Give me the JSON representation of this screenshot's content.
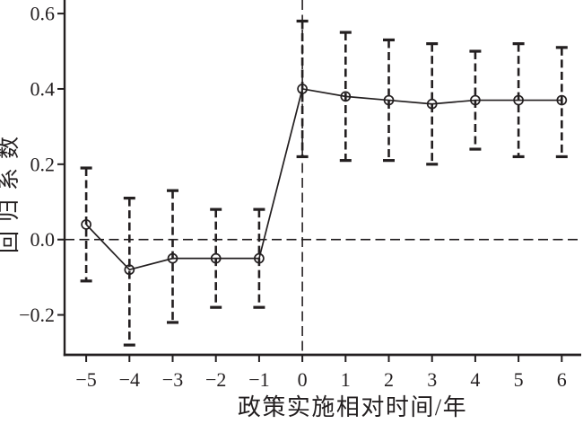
{
  "figure": {
    "background": "#ffffff",
    "ink_color": "#231f20"
  },
  "chart_data": {
    "type": "line",
    "subtype": "event-study-coefficient-plot",
    "title": "",
    "xlabel": "政策实施相对时间/年",
    "ylabel": "回归系数",
    "x": [
      -5,
      -4,
      -3,
      -2,
      -1,
      0,
      1,
      2,
      3,
      4,
      5,
      6
    ],
    "series": [
      {
        "name": "回归系数",
        "marker": "open-circle",
        "line_style": "solid",
        "values": [
          0.04,
          -0.08,
          -0.05,
          -0.05,
          -0.05,
          0.4,
          0.38,
          0.37,
          0.36,
          0.37,
          0.37,
          0.37
        ]
      }
    ],
    "error_bars": {
      "style": "dashed-whiskers-with-caps",
      "upper": [
        0.19,
        0.11,
        0.13,
        0.08,
        0.08,
        0.58,
        0.55,
        0.53,
        0.52,
        0.5,
        0.52,
        0.51
      ],
      "lower": [
        -0.11,
        -0.28,
        -0.22,
        -0.18,
        -0.18,
        0.22,
        0.21,
        0.21,
        0.2,
        0.24,
        0.22,
        0.22
      ]
    },
    "reference_lines": [
      {
        "axis": "y",
        "value": 0,
        "style": "dashed"
      },
      {
        "axis": "x",
        "value": 0,
        "style": "dashed"
      }
    ],
    "xtick_labels": [
      "−5",
      "−4",
      "−3",
      "−2",
      "−1",
      "0",
      "1",
      "2",
      "3",
      "4",
      "5",
      "6"
    ],
    "ytick_values": [
      -0.2,
      0.0,
      0.2,
      0.4,
      0.6
    ],
    "ytick_labels": [
      "−0.2",
      "0.0",
      "0.2",
      "0.4",
      "0.6"
    ],
    "xlim": [
      -5.5,
      6.45
    ],
    "ylim": [
      -0.306,
      0.636
    ],
    "grid": false,
    "legend_position": "none"
  }
}
